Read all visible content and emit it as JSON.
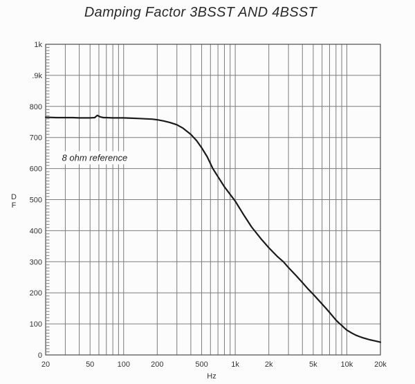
{
  "title": "Damping Factor 3BSST AND 4BSST",
  "colors": {
    "background": "#fcfcfc",
    "gridline": "#7b7b7b",
    "axis_border": "#4a4a4a",
    "curve": "#1b1b1b",
    "text": "#333333"
  },
  "chart_data": {
    "type": "line",
    "title": "Damping Factor 3BSST AND 4BSST",
    "xlabel": "Hz",
    "ylabel": "D F",
    "ylabel_lines": [
      "D",
      "F"
    ],
    "x_scale": "log",
    "xlim": [
      20,
      20000
    ],
    "ylim": [
      0,
      1000
    ],
    "grid": true,
    "legend": "none",
    "x_ticks": [
      {
        "value": 20,
        "label": "20"
      },
      {
        "value": 50,
        "label": "50"
      },
      {
        "value": 100,
        "label": "100"
      },
      {
        "value": 200,
        "label": "200"
      },
      {
        "value": 500,
        "label": "500"
      },
      {
        "value": 1000,
        "label": "1k"
      },
      {
        "value": 2000,
        "label": "2k"
      },
      {
        "value": 5000,
        "label": "5k"
      },
      {
        "value": 10000,
        "label": "10k"
      },
      {
        "value": 20000,
        "label": "20k"
      }
    ],
    "y_ticks": [
      {
        "value": 1000,
        "label": "1k"
      },
      {
        "value": 900,
        "label": ".9k"
      },
      {
        "value": 800,
        "label": "800"
      },
      {
        "value": 700,
        "label": "700"
      },
      {
        "value": 600,
        "label": "600"
      },
      {
        "value": 500,
        "label": "500"
      },
      {
        "value": 400,
        "label": "400"
      },
      {
        "value": 300,
        "label": "300"
      },
      {
        "value": 200,
        "label": "200"
      },
      {
        "value": 100,
        "label": "100"
      },
      {
        "value": 0,
        "label": "0"
      }
    ],
    "x_gridlines": [
      30,
      40,
      50,
      60,
      70,
      80,
      90,
      100,
      200,
      300,
      400,
      500,
      600,
      700,
      800,
      900,
      1000,
      2000,
      3000,
      4000,
      5000,
      6000,
      7000,
      8000,
      9000,
      10000,
      20000
    ],
    "y_gridline_step": 100,
    "y_minor_tick_step": 10,
    "annotation": {
      "text": "8 ohm reference",
      "x_hz": 55,
      "y_df": 635
    },
    "series": [
      {
        "points": [
          [
            20,
            765
          ],
          [
            25,
            764
          ],
          [
            30,
            764
          ],
          [
            35,
            764
          ],
          [
            40,
            763
          ],
          [
            45,
            763
          ],
          [
            50,
            763
          ],
          [
            55,
            764
          ],
          [
            58,
            771
          ],
          [
            62,
            766
          ],
          [
            66,
            764
          ],
          [
            70,
            764
          ],
          [
            80,
            763
          ],
          [
            90,
            763
          ],
          [
            100,
            763
          ],
          [
            120,
            762
          ],
          [
            140,
            761
          ],
          [
            160,
            760
          ],
          [
            180,
            759
          ],
          [
            200,
            757
          ],
          [
            230,
            753
          ],
          [
            260,
            748
          ],
          [
            300,
            741
          ],
          [
            340,
            730
          ],
          [
            400,
            710
          ],
          [
            450,
            690
          ],
          [
            500,
            667
          ],
          [
            560,
            638
          ],
          [
            630,
            600
          ],
          [
            700,
            574
          ],
          [
            800,
            541
          ],
          [
            900,
            517
          ],
          [
            1000,
            495
          ],
          [
            1200,
            449
          ],
          [
            1400,
            412
          ],
          [
            1700,
            374
          ],
          [
            2000,
            345
          ],
          [
            2400,
            316
          ],
          [
            2700,
            300
          ],
          [
            3000,
            281
          ],
          [
            3500,
            256
          ],
          [
            4000,
            233
          ],
          [
            4500,
            212
          ],
          [
            5000,
            195
          ],
          [
            5500,
            179
          ],
          [
            6000,
            164
          ],
          [
            6500,
            150
          ],
          [
            7000,
            137
          ],
          [
            7500,
            124
          ],
          [
            8000,
            112
          ],
          [
            8500,
            103
          ],
          [
            9000,
            95
          ],
          [
            9500,
            87
          ],
          [
            10000,
            80
          ],
          [
            11000,
            71
          ],
          [
            12000,
            64
          ],
          [
            13000,
            59
          ],
          [
            14000,
            55
          ],
          [
            15000,
            52
          ],
          [
            16000,
            49
          ],
          [
            17000,
            47
          ],
          [
            18000,
            45
          ],
          [
            19000,
            43
          ],
          [
            20000,
            41
          ]
        ]
      }
    ]
  }
}
